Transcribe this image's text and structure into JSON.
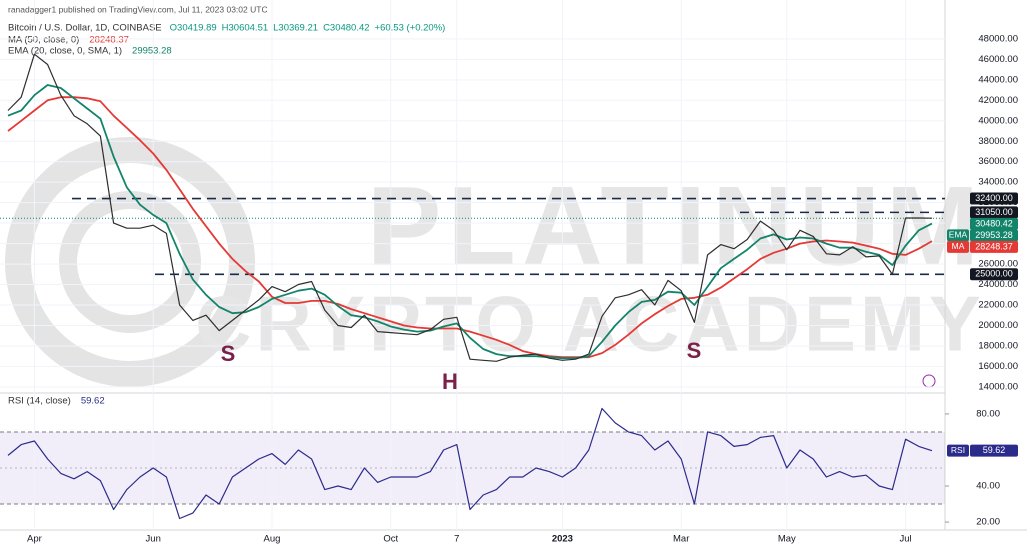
{
  "chart_data": [
    {
      "type": "line",
      "title": "Bitcoin / U.S. Dollar, 1D, COINBASE",
      "subtitle": "ranadagger1 published on TradingView.com, Jul 11, 2023 03:02 UTC",
      "ohlc": [
        "O30419.89",
        "H30604.51",
        "L30369.21",
        "C30480.42",
        "+60.53 (+0.20%)"
      ],
      "categories": [
        null,
        null,
        "Apr",
        null,
        null,
        null,
        null,
        null,
        null,
        null,
        null,
        "Jun",
        null,
        null,
        null,
        null,
        null,
        null,
        null,
        null,
        "Aug",
        null,
        null,
        null,
        null,
        null,
        null,
        null,
        null,
        "Oct",
        null,
        null,
        null,
        null,
        "7",
        null,
        null,
        null,
        null,
        null,
        null,
        null,
        "2023",
        null,
        null,
        null,
        null,
        null,
        null,
        null,
        null,
        "Mar",
        null,
        null,
        null,
        null,
        null,
        null,
        null,
        "May",
        null,
        null,
        null,
        null,
        null,
        null,
        null,
        null,
        "Jul",
        null,
        null
      ],
      "values": [
        41000,
        42300,
        46500,
        45500,
        42500,
        40500,
        39700,
        38500,
        30000,
        29500,
        29500,
        29800,
        29000,
        22000,
        20500,
        21000,
        19500,
        20500,
        21500,
        22500,
        23800,
        23300,
        24000,
        24300,
        21500,
        20000,
        19800,
        21000,
        19400,
        19300,
        19200,
        19100,
        19600,
        20600,
        20800,
        16700,
        16600,
        16500,
        16900,
        17100,
        17200,
        16800,
        16600,
        16700,
        17200,
        20900,
        22700,
        23000,
        23500,
        22000,
        24400,
        23400,
        20300,
        26900,
        27900,
        27500,
        28400,
        30200,
        29300,
        27400,
        29300,
        28700,
        27000,
        26900,
        27700,
        26700,
        26800,
        25000,
        30500,
        30500,
        30480.42
      ],
      "color": "#2e2e2e",
      "series": [
        {
          "name": "MA (50, close, 0)",
          "color": "#e53935",
          "values": [
            39000,
            40000,
            41000,
            42000,
            42300,
            42300,
            42200,
            41900,
            40500,
            39300,
            38100,
            36800,
            35200,
            33300,
            31400,
            29700,
            28000,
            26500,
            25300,
            24300,
            22800,
            22200,
            22200,
            22400,
            22400,
            22100,
            21600,
            21200,
            20800,
            20400,
            20000,
            19800,
            19700,
            19700,
            19700,
            19400,
            19000,
            18600,
            18100,
            17500,
            17200,
            17000,
            16900,
            16900,
            16900,
            17300,
            18100,
            19100,
            20200,
            21100,
            21900,
            22600,
            22700,
            23000,
            23700,
            24600,
            25500,
            26500,
            27100,
            27500,
            28000,
            28200,
            28300,
            28200,
            28100,
            27800,
            27500,
            27000,
            26900,
            27500,
            28248.37
          ]
        },
        {
          "name": "EMA (20, close, 0, SMA, 1)",
          "color": "#12846a",
          "values": [
            40500,
            41000,
            42500,
            43500,
            43200,
            42200,
            41200,
            40200,
            36500,
            33500,
            31800,
            30800,
            30000,
            27000,
            24500,
            23000,
            21800,
            21200,
            21300,
            21800,
            22600,
            23000,
            23400,
            23600,
            23000,
            21900,
            21000,
            20800,
            20400,
            19900,
            19600,
            19400,
            19500,
            19900,
            20200,
            18800,
            17700,
            17200,
            17000,
            17000,
            17000,
            16900,
            16800,
            16800,
            17000,
            18400,
            20000,
            21300,
            22300,
            22500,
            23300,
            23200,
            22000,
            23800,
            25600,
            26500,
            27400,
            28500,
            28900,
            28400,
            28600,
            28500,
            28000,
            27600,
            27600,
            27200,
            26900,
            25900,
            27800,
            29300,
            29953.28
          ]
        }
      ],
      "series_tags": [
        "MA",
        "EMA"
      ],
      "ylim": [
        13500,
        51800
      ],
      "yticks": [
        {
          "value": 14000,
          "label": "14000.00"
        },
        {
          "value": 16000,
          "label": "16000.00"
        },
        {
          "value": 18000,
          "label": "18000.00"
        },
        {
          "value": 20000,
          "label": "20000.00"
        },
        {
          "value": 22000,
          "label": "22000.00"
        },
        {
          "value": 24000,
          "label": "24000.00"
        },
        {
          "value": 26000,
          "label": "26000.00"
        },
        {
          "value": 28000,
          "label": "28000.00"
        },
        {
          "value": 30000,
          "label": "30000.00"
        },
        {
          "value": 32000,
          "label": "32000.00"
        },
        {
          "value": 34000,
          "label": "34000.00"
        },
        {
          "value": 36000,
          "label": "36000.00"
        },
        {
          "value": 38000,
          "label": "38000.00"
        },
        {
          "value": 40000,
          "label": "40000.00"
        },
        {
          "value": 42000,
          "label": "42000.00"
        },
        {
          "value": 44000,
          "label": "44000.00"
        },
        {
          "value": 46000,
          "label": "46000.00"
        },
        {
          "value": 48000,
          "label": "48000.00"
        }
      ],
      "grid": true,
      "levels": [
        {
          "value": 32400,
          "label": "32400.00"
        },
        {
          "value": 31050,
          "label": "31050.00"
        },
        {
          "value": 25000,
          "label": "25000.00"
        }
      ],
      "last_price": {
        "value": 30480.42,
        "label": "30480.42",
        "color": "#12846a"
      },
      "annotations": [
        "S",
        "H",
        "S"
      ],
      "watermark": [
        "PLATINUM",
        "CRYPTO ACADEMY"
      ]
    },
    {
      "type": "line",
      "title": "RSI (14, close)",
      "tag": "RSI",
      "values": [
        57,
        63,
        65,
        55,
        47,
        44,
        48,
        43,
        27,
        38,
        45,
        50,
        45,
        22,
        25,
        35,
        30,
        45,
        50,
        55,
        58,
        52,
        60,
        55,
        38,
        40,
        38,
        50,
        42,
        45,
        45,
        45,
        48,
        60,
        63,
        27,
        35,
        38,
        45,
        45,
        50,
        48,
        45,
        50,
        60,
        83,
        75,
        70,
        68,
        60,
        65,
        55,
        30,
        70,
        68,
        62,
        63,
        67,
        68,
        50,
        60,
        55,
        45,
        48,
        45,
        46,
        40,
        38,
        66,
        62,
        59.62
      ],
      "color": "#2b2b8c",
      "ylim": [
        15.6,
        90.5
      ],
      "yticks": [
        {
          "value": 20,
          "label": "20.00"
        },
        {
          "value": 40,
          "label": "40.00"
        },
        {
          "value": 80,
          "label": "80.00"
        }
      ],
      "band": [
        30,
        70
      ],
      "band_color": "#7e57c2",
      "midline": 50
    }
  ]
}
